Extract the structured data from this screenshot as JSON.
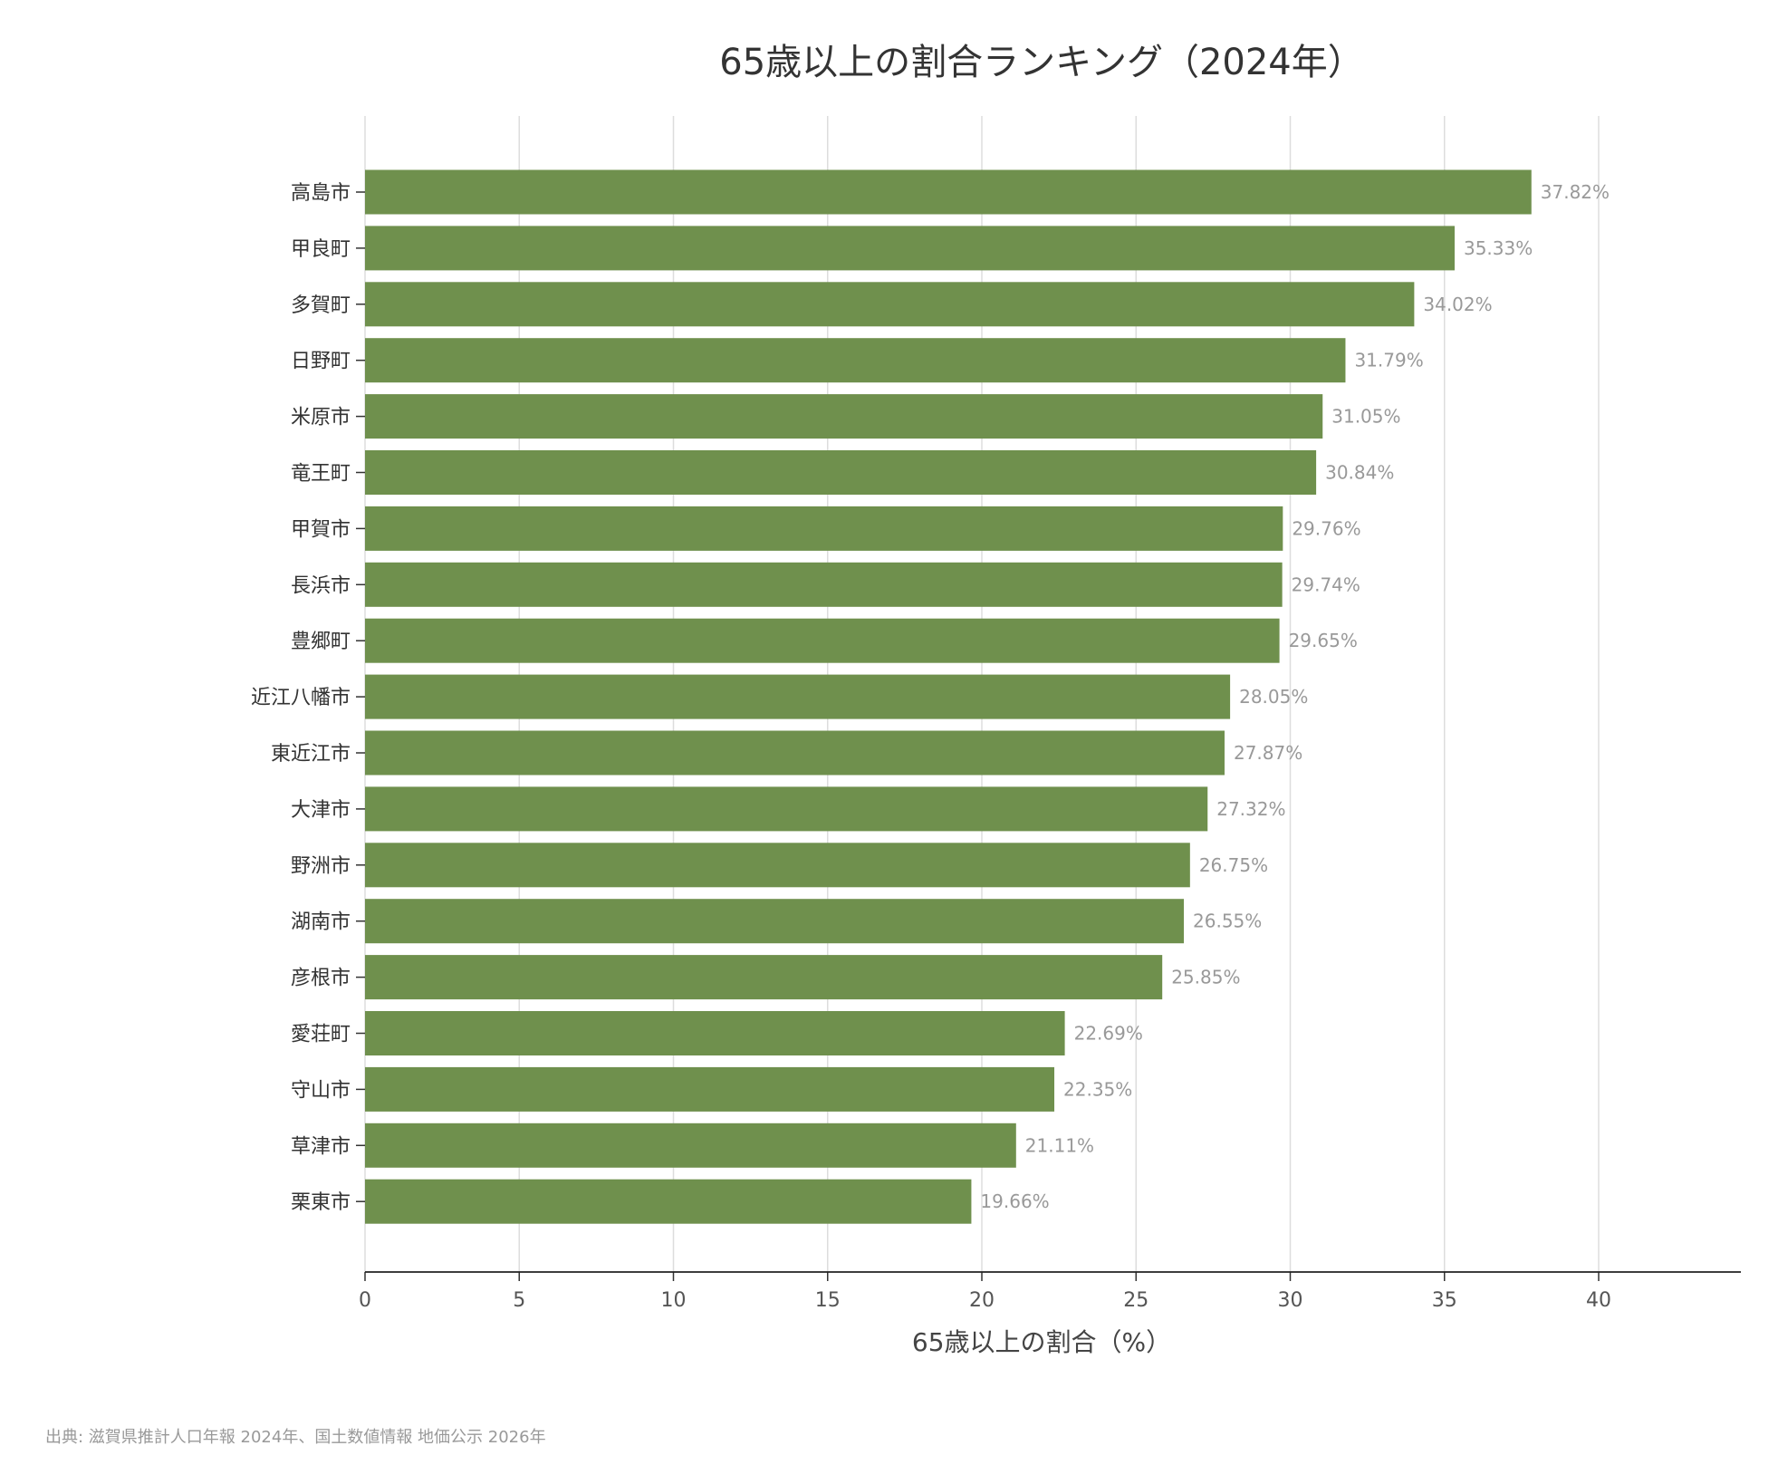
{
  "chart_data": {
    "type": "bar",
    "orientation": "horizontal",
    "title": "65歳以上の割合ランキング（2024年）",
    "xlabel": "65歳以上の割合（%）",
    "ylabel": "",
    "categories": [
      "高島市",
      "甲良町",
      "多賀町",
      "日野町",
      "米原市",
      "竜王町",
      "甲賀市",
      "長浜市",
      "豊郷町",
      "近江八幡市",
      "東近江市",
      "大津市",
      "野洲市",
      "湖南市",
      "彦根市",
      "愛荘町",
      "守山市",
      "草津市",
      "栗東市"
    ],
    "values": [
      37.82,
      35.33,
      34.02,
      31.79,
      31.05,
      30.84,
      29.76,
      29.74,
      29.65,
      28.05,
      27.87,
      27.32,
      26.75,
      26.55,
      25.85,
      22.69,
      22.35,
      21.11,
      19.66
    ],
    "value_labels": [
      "37.82%",
      "35.33%",
      "34.02%",
      "31.79%",
      "31.05%",
      "30.84%",
      "29.76%",
      "29.74%",
      "29.65%",
      "28.05%",
      "27.87%",
      "27.32%",
      "26.75%",
      "26.55%",
      "25.85%",
      "22.69%",
      "22.35%",
      "21.11%",
      "19.66%"
    ],
    "xticks": [
      0,
      5,
      10,
      15,
      20,
      25,
      30,
      35,
      40
    ],
    "xlim": [
      0,
      44.6
    ],
    "grid": "vertical",
    "bar_color": "#6f904d"
  },
  "source": "出典: 滋賀県推計人口年報 2024年、国土数値情報 地価公示 2026年"
}
